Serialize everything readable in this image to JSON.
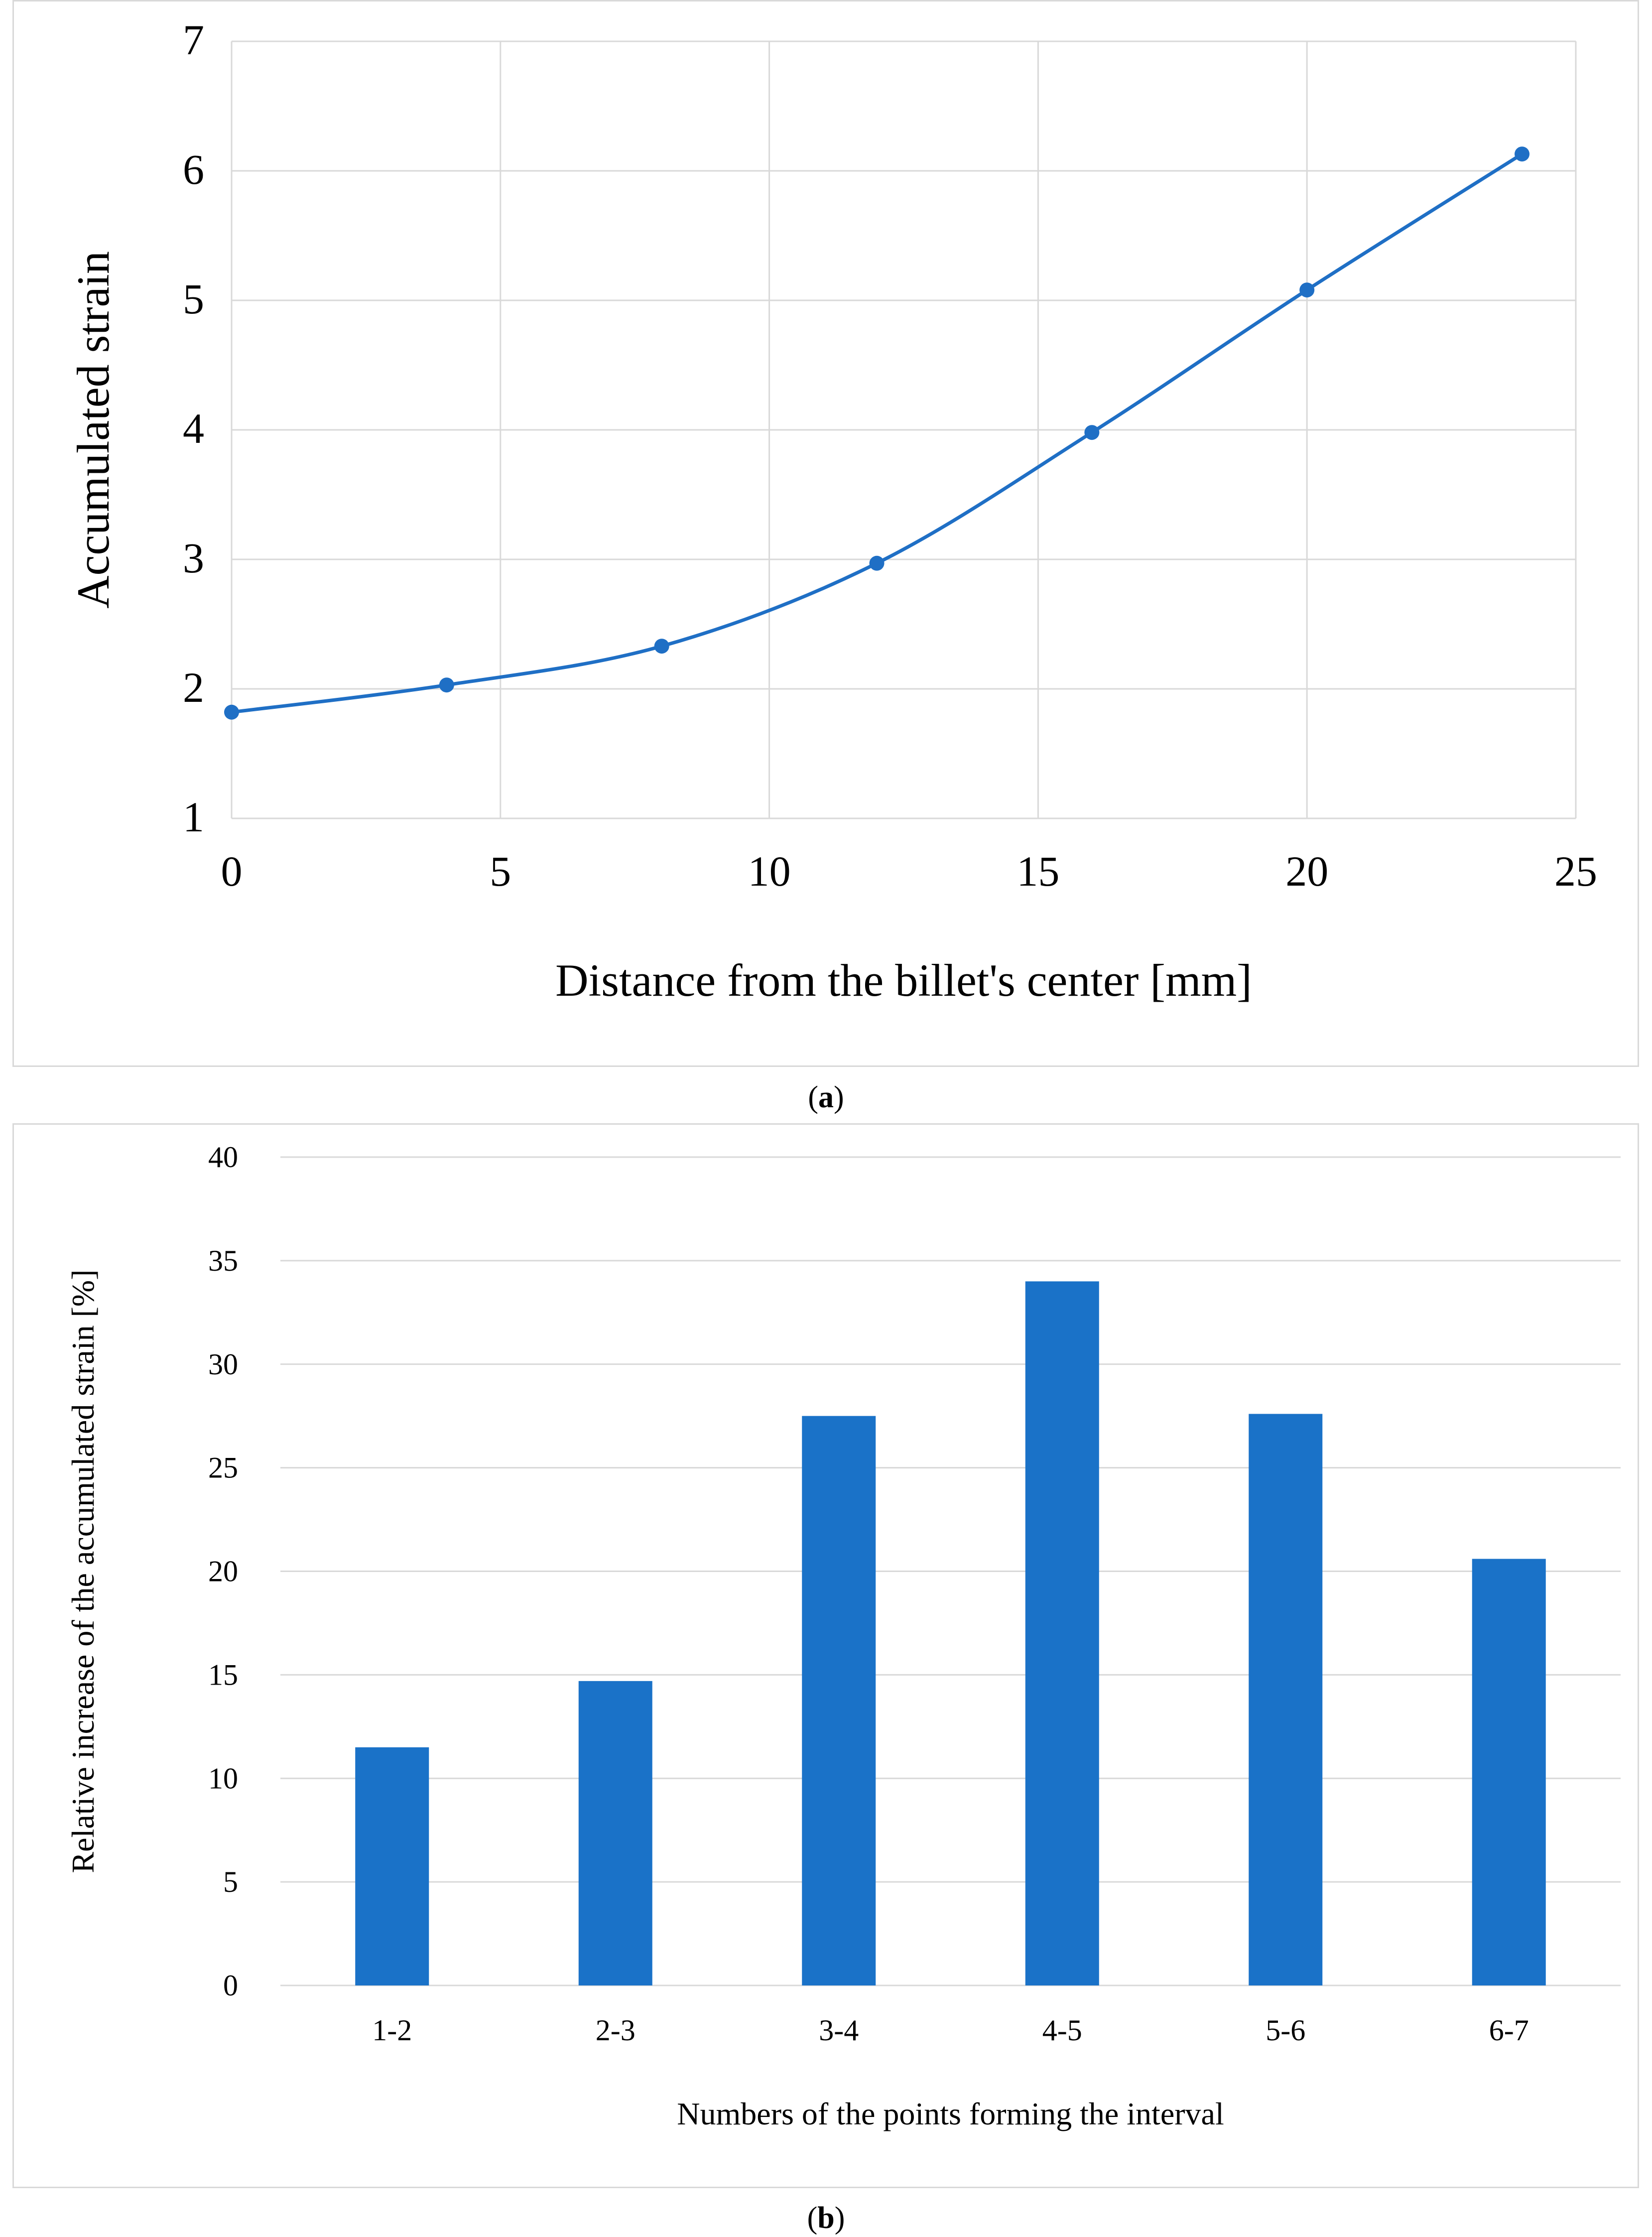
{
  "chart_data": [
    {
      "id": "a",
      "type": "line",
      "caption_label": "a",
      "title": "",
      "xlabel": "Distance from the billet's center [mm]",
      "ylabel": "Accumulated strain",
      "xlim": [
        0,
        25
      ],
      "ylim": [
        1,
        7
      ],
      "xticks": [
        0,
        5,
        10,
        15,
        20,
        25
      ],
      "yticks": [
        1,
        2,
        3,
        4,
        5,
        6,
        7
      ],
      "grid": true,
      "series": [
        {
          "name": "Accumulated strain",
          "color": "#1f6fc5",
          "x": [
            0,
            4,
            8,
            12,
            16,
            20,
            24
          ],
          "y": [
            1.82,
            2.03,
            2.33,
            2.97,
            3.98,
            5.08,
            6.13
          ]
        }
      ]
    },
    {
      "id": "b",
      "type": "bar",
      "caption_label": "b",
      "title": "",
      "xlabel": "Numbers of the points forming the interval",
      "ylabel": "Relative increase of the accumulated strain [%]",
      "ylim": [
        0,
        40
      ],
      "yticks": [
        0,
        5,
        10,
        15,
        20,
        25,
        30,
        35,
        40
      ],
      "grid": true,
      "categories": [
        "1-2",
        "2-3",
        "3-4",
        "4-5",
        "5-6",
        "6-7"
      ],
      "values": [
        11.5,
        14.7,
        27.5,
        34.0,
        27.6,
        20.6
      ],
      "color": "#1a72c8"
    }
  ]
}
